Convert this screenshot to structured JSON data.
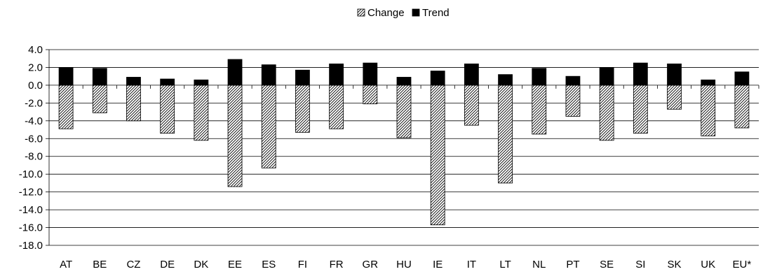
{
  "chart_data": {
    "type": "bar",
    "title": "",
    "xlabel": "",
    "ylabel": "",
    "categories": [
      "AT",
      "BE",
      "CZ",
      "DE",
      "DK",
      "EE",
      "ES",
      "FI",
      "FR",
      "GR",
      "HU",
      "IE",
      "IT",
      "LT",
      "NL",
      "PT",
      "SE",
      "SI",
      "SK",
      "UK",
      "EU*"
    ],
    "series": [
      {
        "name": "Change",
        "pattern": "diagonal-hatch",
        "color": "#ffffff",
        "values": [
          -4.9,
          -3.1,
          -4.0,
          -5.4,
          -6.2,
          -11.4,
          -9.3,
          -5.3,
          -4.9,
          -2.1,
          -5.9,
          -15.7,
          -4.5,
          -11.0,
          -5.5,
          -3.5,
          -6.2,
          -5.4,
          -2.7,
          -5.7,
          -4.8
        ]
      },
      {
        "name": "Trend",
        "pattern": "solid",
        "color": "#000000",
        "values": [
          2.0,
          1.9,
          0.9,
          0.7,
          0.6,
          2.9,
          2.3,
          1.7,
          2.4,
          2.5,
          0.9,
          1.6,
          2.4,
          1.2,
          1.9,
          1.0,
          2.0,
          2.5,
          2.4,
          0.6,
          1.5
        ]
      }
    ],
    "ylim": [
      -18.0,
      4.0
    ],
    "yticks": [
      "4.0",
      "2.0",
      "0.0",
      "-2.0",
      "-4.0",
      "-6.0",
      "-8.0",
      "-10.0",
      "-12.0",
      "-14.0",
      "-16.0",
      "-18.0"
    ],
    "grid": true,
    "legend_position": "top-center"
  }
}
